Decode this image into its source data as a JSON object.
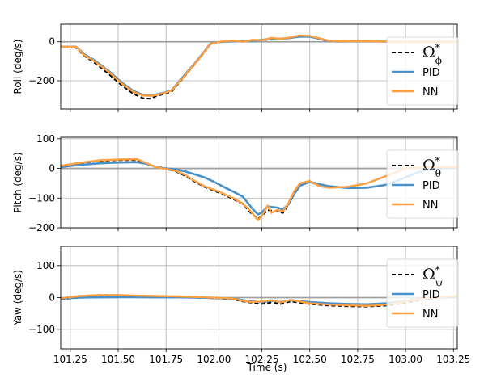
{
  "chart_data": {
    "type": "line",
    "x_axis": {
      "label": "Time (s)",
      "range": [
        101.2,
        103.27
      ],
      "ticks": [
        101.25,
        101.5,
        101.75,
        102.0,
        102.25,
        102.5,
        102.75,
        103.0,
        103.25
      ],
      "tick_labels": [
        "101.25",
        "101.50",
        "101.75",
        "102.00",
        "102.25",
        "102.50",
        "102.75",
        "103.00",
        "103.25"
      ]
    },
    "grid": true,
    "colors": {
      "target": "#000000",
      "PID": "#4a90c8",
      "NN": "#ff9f40",
      "zero_line": "#a0a0a0",
      "grid": "#b0b0b0"
    },
    "panels": [
      {
        "id": "roll",
        "ylabel": "Roll (deg/s)",
        "ylim": [
          -345,
          90
        ],
        "yticks": [
          0,
          -200
        ],
        "ytick_labels": [
          "0",
          "−200"
        ],
        "legend": {
          "placement": "right",
          "entries": [
            {
              "series": "target",
              "label": "Ω",
              "sup": "*",
              "sub": "ϕ"
            },
            {
              "series": "PID",
              "label": "PID"
            },
            {
              "series": "NN",
              "label": "NN"
            }
          ]
        },
        "series": [
          {
            "name": "target",
            "x": [
              101.2,
              101.28,
              101.32,
              101.38,
              101.45,
              101.52,
              101.58,
              101.63,
              101.67,
              101.7,
              101.74,
              101.78,
              101.84,
              101.9,
              101.95,
              101.98,
              102.0,
              102.05,
              102.1,
              102.15,
              102.2,
              102.25,
              102.3,
              102.35,
              102.4,
              102.45,
              102.5,
              102.55,
              102.6,
              102.7,
              102.8,
              102.9,
              103.0,
              103.27
            ],
            "y": [
              -25,
              -30,
              -70,
              -110,
              -165,
              -225,
              -268,
              -290,
              -292,
              -278,
              -268,
              -255,
              -185,
              -115,
              -55,
              -15,
              -5,
              0,
              3,
              6,
              6,
              8,
              13,
              15,
              20,
              26,
              26,
              14,
              3,
              2,
              2,
              1,
              0,
              0
            ]
          },
          {
            "name": "PID",
            "x": [
              101.2,
              101.28,
              101.32,
              101.38,
              101.45,
              101.52,
              101.58,
              101.63,
              101.67,
              101.7,
              101.74,
              101.78,
              101.84,
              101.9,
              101.95,
              101.98,
              102.0,
              102.05,
              102.1,
              102.15,
              102.2,
              102.25,
              102.3,
              102.35,
              102.4,
              102.45,
              102.5,
              102.55,
              102.6,
              102.7,
              102.8,
              102.9,
              103.0,
              103.27
            ],
            "y": [
              -25,
              -25,
              -62,
              -97,
              -150,
              -210,
              -253,
              -272,
              -274,
              -270,
              -262,
              -248,
              -178,
              -110,
              -50,
              -12,
              -3,
              0,
              3,
              5,
              6,
              10,
              14,
              16,
              20,
              27,
              26,
              16,
              5,
              3,
              2,
              1,
              0,
              0
            ]
          },
          {
            "name": "NN",
            "x": [
              101.2,
              101.28,
              101.32,
              101.38,
              101.45,
              101.52,
              101.58,
              101.63,
              101.67,
              101.7,
              101.74,
              101.78,
              101.84,
              101.9,
              101.95,
              101.98,
              102.0,
              102.05,
              102.1,
              102.15,
              102.2,
              102.25,
              102.3,
              102.35,
              102.4,
              102.45,
              102.5,
              102.55,
              102.6,
              102.7,
              102.8,
              102.9,
              103.0,
              103.27
            ],
            "y": [
              -25,
              -26,
              -66,
              -102,
              -155,
              -215,
              -258,
              -276,
              -278,
              -273,
              -264,
              -250,
              -182,
              -112,
              -53,
              -13,
              -5,
              2,
              6,
              0,
              10,
              8,
              20,
              15,
              23,
              33,
              30,
              18,
              5,
              3,
              3,
              1,
              0,
              0
            ]
          }
        ]
      },
      {
        "id": "pitch",
        "ylabel": "Pitch (deg/s)",
        "ylim": [
          -200,
          105
        ],
        "yticks": [
          100,
          0,
          -100,
          -200
        ],
        "ytick_labels": [
          "100",
          "0",
          "−100",
          "−200"
        ],
        "legend": {
          "placement": "right",
          "entries": [
            {
              "series": "target",
              "label": "Ω",
              "sup": "*",
              "sub": "θ"
            },
            {
              "series": "PID",
              "label": "PID"
            },
            {
              "series": "NN",
              "label": "NN"
            }
          ]
        },
        "series": [
          {
            "name": "target",
            "x": [
              101.2,
              101.3,
              101.4,
              101.5,
              101.6,
              101.65,
              101.7,
              101.75,
              101.8,
              101.85,
              101.9,
              101.95,
              102.0,
              102.05,
              102.1,
              102.15,
              102.2,
              102.23,
              102.25,
              102.28,
              102.3,
              102.33,
              102.36,
              102.39,
              102.42,
              102.45,
              102.5,
              102.55,
              102.6,
              102.7,
              102.8,
              102.9,
              103.0,
              103.1,
              103.27
            ],
            "y": [
              8,
              18,
              25,
              28,
              28,
              15,
              5,
              -2,
              -10,
              -25,
              -45,
              -62,
              -75,
              -88,
              -103,
              -120,
              -155,
              -170,
              -160,
              -140,
              -142,
              -145,
              -150,
              -120,
              -80,
              -55,
              -45,
              -58,
              -65,
              -62,
              -50,
              -25,
              0,
              5,
              5
            ]
          },
          {
            "name": "PID",
            "x": [
              101.2,
              101.3,
              101.4,
              101.5,
              101.6,
              101.65,
              101.7,
              101.75,
              101.8,
              101.85,
              101.9,
              101.95,
              102.0,
              102.05,
              102.1,
              102.15,
              102.2,
              102.23,
              102.25,
              102.28,
              102.3,
              102.33,
              102.36,
              102.39,
              102.42,
              102.45,
              102.5,
              102.55,
              102.6,
              102.7,
              102.8,
              102.9,
              103.0,
              103.1,
              103.27
            ],
            "y": [
              5,
              12,
              17,
              20,
              21,
              15,
              5,
              0,
              -3,
              -10,
              -20,
              -30,
              -45,
              -62,
              -78,
              -95,
              -135,
              -155,
              -148,
              -128,
              -130,
              -132,
              -138,
              -120,
              -85,
              -58,
              -45,
              -53,
              -60,
              -66,
              -65,
              -55,
              -30,
              -5,
              5
            ]
          },
          {
            "name": "NN",
            "x": [
              101.2,
              101.3,
              101.4,
              101.5,
              101.6,
              101.65,
              101.7,
              101.75,
              101.8,
              101.85,
              101.9,
              101.95,
              102.0,
              102.05,
              102.1,
              102.15,
              102.2,
              102.23,
              102.25,
              102.28,
              102.3,
              102.33,
              102.36,
              102.39,
              102.42,
              102.45,
              102.5,
              102.55,
              102.6,
              102.7,
              102.8,
              102.9,
              103.0,
              103.1,
              103.27
            ],
            "y": [
              9,
              19,
              27,
              30,
              31,
              17,
              4,
              -2,
              -8,
              -22,
              -42,
              -60,
              -72,
              -85,
              -100,
              -118,
              -150,
              -175,
              -160,
              -125,
              -150,
              -140,
              -145,
              -115,
              -75,
              -50,
              -42,
              -60,
              -65,
              -62,
              -50,
              -25,
              0,
              5,
              5
            ]
          }
        ]
      },
      {
        "id": "yaw",
        "ylabel": "Yaw (deg/s)",
        "ylim": [
          -160,
          160
        ],
        "yticks": [
          100,
          0,
          -100
        ],
        "ytick_labels": [
          "100",
          "0",
          "−100"
        ],
        "legend": {
          "placement": "right",
          "entries": [
            {
              "series": "target",
              "label": "Ω",
              "sup": "*",
              "sub": "ψ"
            },
            {
              "series": "PID",
              "label": "PID"
            },
            {
              "series": "NN",
              "label": "NN"
            }
          ]
        },
        "series": [
          {
            "name": "target",
            "x": [
              101.2,
              101.3,
              101.4,
              101.5,
              101.6,
              101.7,
              101.8,
              101.9,
              102.0,
              102.1,
              102.15,
              102.2,
              102.25,
              102.3,
              102.35,
              102.4,
              102.5,
              102.6,
              102.7,
              102.8,
              102.9,
              103.0,
              103.1,
              103.2,
              103.27
            ],
            "y": [
              -5,
              0,
              2,
              3,
              3,
              2,
              1,
              0,
              -2,
              -5,
              -12,
              -16,
              -20,
              -15,
              -20,
              -12,
              -20,
              -25,
              -27,
              -28,
              -25,
              -15,
              -5,
              0,
              5
            ]
          },
          {
            "name": "PID",
            "x": [
              101.2,
              101.3,
              101.4,
              101.5,
              101.6,
              101.7,
              101.8,
              101.9,
              102.0,
              102.1,
              102.15,
              102.2,
              102.25,
              102.3,
              102.35,
              102.4,
              102.5,
              102.6,
              102.7,
              102.8,
              102.9,
              103.0,
              103.1,
              103.2,
              103.27
            ],
            "y": [
              -3,
              0,
              1,
              2,
              2,
              1,
              1,
              0,
              -1,
              -3,
              -8,
              -12,
              -14,
              -10,
              -14,
              -8,
              -14,
              -18,
              -20,
              -21,
              -18,
              -10,
              -3,
              0,
              4
            ]
          },
          {
            "name": "NN",
            "x": [
              101.2,
              101.3,
              101.4,
              101.5,
              101.6,
              101.7,
              101.8,
              101.9,
              102.0,
              102.1,
              102.15,
              102.2,
              102.25,
              102.3,
              102.35,
              102.4,
              102.5,
              102.6,
              102.7,
              102.8,
              102.9,
              103.0,
              103.1,
              103.2,
              103.27
            ],
            "y": [
              -2,
              5,
              8,
              8,
              6,
              5,
              4,
              2,
              0,
              -3,
              -10,
              -14,
              -12,
              -8,
              -15,
              -7,
              -18,
              -22,
              -24,
              -26,
              -22,
              -12,
              -2,
              2,
              6
            ]
          }
        ]
      }
    ]
  }
}
